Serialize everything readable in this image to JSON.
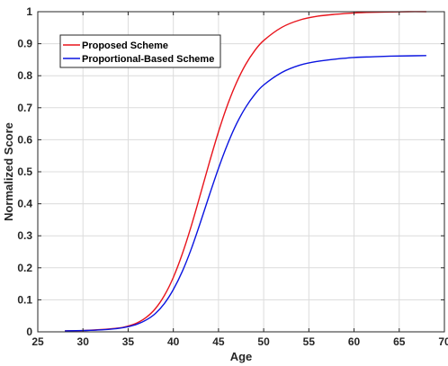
{
  "chart_data": {
    "type": "line",
    "title": "",
    "xlabel": "Age",
    "ylabel": "Normalized Score",
    "xlim": [
      25,
      70
    ],
    "ylim": [
      0,
      1
    ],
    "xticks": [
      "25",
      "30",
      "35",
      "40",
      "45",
      "50",
      "55",
      "60",
      "65",
      "70"
    ],
    "yticks": [
      "0",
      "0.1",
      "0.2",
      "0.3",
      "0.4",
      "0.5",
      "0.6",
      "0.7",
      "0.8",
      "0.9",
      "1"
    ],
    "grid": true,
    "legend_position": "top-left",
    "x": [
      28,
      30,
      32,
      34,
      35,
      36,
      37,
      38,
      39,
      40,
      41,
      42,
      43,
      44,
      45,
      46,
      47,
      48,
      49,
      50,
      52,
      54,
      56,
      58,
      60,
      62,
      64,
      66,
      68
    ],
    "series": [
      {
        "name": "Proposed Scheme",
        "color": "#e8141c",
        "values": [
          0.003,
          0.004,
          0.007,
          0.012,
          0.018,
          0.028,
          0.045,
          0.072,
          0.113,
          0.17,
          0.244,
          0.332,
          0.43,
          0.53,
          0.625,
          0.709,
          0.779,
          0.835,
          0.878,
          0.91,
          0.951,
          0.974,
          0.986,
          0.992,
          0.996,
          0.998,
          0.999,
          1.0,
          1.0
        ]
      },
      {
        "name": "Proportional-Based Scheme",
        "color": "#0a14e0",
        "values": [
          0.003,
          0.004,
          0.006,
          0.011,
          0.016,
          0.024,
          0.037,
          0.057,
          0.088,
          0.132,
          0.189,
          0.26,
          0.342,
          0.428,
          0.511,
          0.586,
          0.65,
          0.701,
          0.741,
          0.771,
          0.81,
          0.833,
          0.845,
          0.852,
          0.857,
          0.859,
          0.861,
          0.862,
          0.863
        ]
      }
    ]
  }
}
